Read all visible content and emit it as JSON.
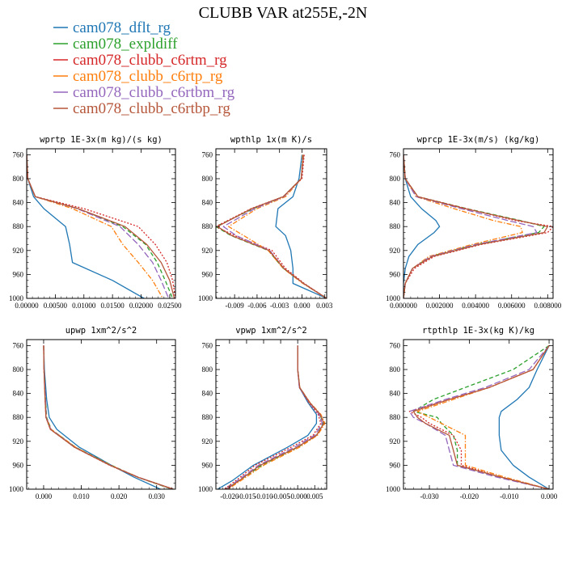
{
  "title": "CLUBB VAR at255E,-2N",
  "legend": [
    {
      "name": "cam078_dflt_rg",
      "color": "#1f77b4",
      "dash": "solid"
    },
    {
      "name": "cam078_expldiff",
      "color": "#2ca02c",
      "dash": "dashed"
    },
    {
      "name": "cam078_clubb_c6rtm_rg",
      "color": "#d62728",
      "dash": "dotted"
    },
    {
      "name": "cam078_clubb_c6rtp_rg",
      "color": "#ff7f0e",
      "dash": "dashdot"
    },
    {
      "name": "cam078_clubb_c6rtbm_rg",
      "color": "#9467bd",
      "dash": "longdash"
    },
    {
      "name": "cam078_clubb_c6rtbp_rg",
      "color": "#b5563a",
      "dash": "solid"
    }
  ],
  "chart_data": [
    {
      "type": "line",
      "title": "wprtp  1E-3x(m kg)/(s kg)",
      "ylim": [
        1000,
        750
      ],
      "y_ticks": [
        760,
        800,
        840,
        880,
        920,
        960,
        1000
      ],
      "xlim": [
        0,
        0.026
      ],
      "x_ticks": [
        0,
        0.005,
        0.01,
        0.015,
        0.02,
        0.025
      ],
      "x_tick_labels": [
        "0.00000",
        "0.00500",
        "0.01000",
        "0.01500",
        "0.02000",
        "0.02500"
      ],
      "y": [
        760,
        800,
        830,
        850,
        880,
        910,
        940,
        970,
        1000
      ],
      "series": [
        {
          "name": "cam078_dflt_rg",
          "values": [
            0.0,
            0.0002,
            0.0012,
            0.003,
            0.0068,
            0.0075,
            0.008,
            0.015,
            0.0205
          ]
        },
        {
          "name": "cam078_expldiff",
          "values": [
            0.0,
            0.0002,
            0.0015,
            0.009,
            0.0168,
            0.0208,
            0.0228,
            0.0242,
            0.0255
          ]
        },
        {
          "name": "cam078_clubb_c6rtm_rg",
          "values": [
            0.0,
            0.0002,
            0.0015,
            0.01,
            0.0195,
            0.0225,
            0.0245,
            0.0255,
            0.026
          ]
        },
        {
          "name": "cam078_clubb_c6rtp_rg",
          "values": [
            0.0,
            0.0002,
            0.0015,
            0.008,
            0.0148,
            0.0168,
            0.0195,
            0.022,
            0.0238
          ]
        },
        {
          "name": "cam078_clubb_c6rtbm_rg",
          "values": [
            0.0,
            0.0002,
            0.0015,
            0.0088,
            0.0163,
            0.0195,
            0.022,
            0.0235,
            0.0248
          ]
        },
        {
          "name": "cam078_clubb_c6rtbp_rg",
          "values": [
            0.0,
            0.0002,
            0.0015,
            0.009,
            0.0172,
            0.021,
            0.0235,
            0.025,
            0.0258
          ]
        }
      ]
    },
    {
      "type": "line",
      "title": "wpthlp  1x(m K)/s",
      "ylim": [
        1000,
        750
      ],
      "y_ticks": [
        760,
        800,
        840,
        880,
        920,
        960,
        1000
      ],
      "xlim": [
        -0.0115,
        0.0033
      ],
      "x_ticks": [
        -0.009,
        -0.006,
        -0.003,
        0.0,
        0.003
      ],
      "x_tick_labels": [
        "-0.009",
        "-0.006",
        "-0.003",
        "0.000",
        "0.003"
      ],
      "y": [
        760,
        800,
        830,
        850,
        880,
        895,
        920,
        950,
        975,
        1000
      ],
      "series": [
        {
          "name": "cam078_dflt_rg",
          "values": [
            0.0,
            -0.0004,
            -0.0012,
            -0.0032,
            -0.0035,
            -0.0022,
            -0.0015,
            -0.0012,
            -0.0012,
            0.0033
          ]
        },
        {
          "name": "cam078_expldiff",
          "values": [
            0.0002,
            -0.0001,
            -0.0025,
            -0.0065,
            -0.0115,
            -0.0095,
            -0.0045,
            -0.0025,
            0.0002,
            0.0033
          ]
        },
        {
          "name": "cam078_clubb_c6rtm_rg",
          "values": [
            0.0003,
            0.0,
            -0.0025,
            -0.0068,
            -0.0115,
            -0.009,
            -0.004,
            -0.0022,
            0.0003,
            0.0033
          ]
        },
        {
          "name": "cam078_clubb_c6rtp_rg",
          "values": [
            0.0001,
            -0.0001,
            -0.0022,
            -0.006,
            -0.0098,
            -0.0078,
            -0.0045,
            -0.0025,
            0.0001,
            0.0033
          ]
        },
        {
          "name": "cam078_clubb_c6rtbm_rg",
          "values": [
            0.0002,
            -0.0001,
            -0.0024,
            -0.0063,
            -0.0105,
            -0.0088,
            -0.0043,
            -0.0024,
            0.0002,
            0.0033
          ]
        },
        {
          "name": "cam078_clubb_c6rtbp_rg",
          "values": [
            0.0002,
            -0.0001,
            -0.0025,
            -0.0067,
            -0.0113,
            -0.0094,
            -0.0044,
            -0.0024,
            0.0002,
            0.0033
          ]
        }
      ]
    },
    {
      "type": "line",
      "title": "wprcp  1E-3x(m/s) (kg/kg)",
      "ylim": [
        1000,
        750
      ],
      "y_ticks": [
        760,
        800,
        840,
        880,
        920,
        960,
        1000
      ],
      "xlim": [
        0,
        0.0083
      ],
      "x_ticks": [
        0,
        0.002,
        0.004,
        0.006,
        0.008
      ],
      "x_tick_labels": [
        "0.000000",
        "0.002000",
        "0.004000",
        "0.006000",
        "0.008000"
      ],
      "y": [
        760,
        800,
        830,
        850,
        870,
        880,
        890,
        910,
        930,
        950,
        975,
        1000
      ],
      "series": [
        {
          "name": "cam078_dflt_rg",
          "values": [
            0.0,
            0.0001,
            0.0004,
            0.001,
            0.0018,
            0.002,
            0.0017,
            0.0008,
            0.0003,
            0.0001,
            0.0,
            0.0
          ]
        },
        {
          "name": "cam078_expldiff",
          "values": [
            0.0,
            0.0001,
            0.0008,
            0.0035,
            0.0065,
            0.0078,
            0.0075,
            0.004,
            0.0015,
            0.0005,
            0.0001,
            0.0
          ]
        },
        {
          "name": "cam078_clubb_c6rtm_rg",
          "values": [
            0.0,
            0.0001,
            0.0008,
            0.0035,
            0.0062,
            0.0083,
            0.008,
            0.0043,
            0.0017,
            0.0006,
            0.0001,
            0.0
          ]
        },
        {
          "name": "cam078_clubb_c6rtp_rg",
          "values": [
            0.0,
            0.0001,
            0.0007,
            0.0028,
            0.005,
            0.0065,
            0.0066,
            0.0038,
            0.0014,
            0.0005,
            0.0001,
            0.0
          ]
        },
        {
          "name": "cam078_clubb_c6rtbm_rg",
          "values": [
            0.0,
            0.0001,
            0.0007,
            0.0032,
            0.0058,
            0.0072,
            0.0074,
            0.004,
            0.0015,
            0.0005,
            0.0001,
            0.0
          ]
        },
        {
          "name": "cam078_clubb_c6rtbp_rg",
          "values": [
            0.0,
            0.0001,
            0.0008,
            0.0034,
            0.0064,
            0.008,
            0.0078,
            0.0042,
            0.0016,
            0.0005,
            0.0001,
            0.0
          ]
        }
      ]
    },
    {
      "type": "line",
      "title": "upwp  1xm^2/s^2",
      "ylim": [
        1000,
        750
      ],
      "y_ticks": [
        760,
        800,
        840,
        880,
        920,
        960,
        1000
      ],
      "xlim": [
        -0.0045,
        0.035
      ],
      "x_ticks": [
        0.0,
        0.01,
        0.02,
        0.03
      ],
      "x_tick_labels": [
        "0.000",
        "0.010",
        "0.020",
        "0.030"
      ],
      "y": [
        760,
        800,
        850,
        880,
        900,
        930,
        960,
        980,
        1000
      ],
      "series": [
        {
          "name": "cam078_dflt_rg",
          "values": [
            0.0,
            0.0002,
            0.0008,
            0.0015,
            0.0035,
            0.0095,
            0.018,
            0.024,
            0.031
          ]
        },
        {
          "name": "cam078_expldiff",
          "values": [
            0.0,
            0.0001,
            0.0005,
            0.0008,
            0.002,
            0.0085,
            0.018,
            0.025,
            0.034
          ]
        },
        {
          "name": "cam078_clubb_c6rtm_rg",
          "values": [
            0.0,
            0.0001,
            0.0004,
            0.0006,
            0.0018,
            0.0082,
            0.0175,
            0.025,
            0.0345
          ]
        },
        {
          "name": "cam078_clubb_c6rtp_rg",
          "values": [
            0.0,
            0.0001,
            0.0004,
            0.0007,
            0.002,
            0.0085,
            0.0178,
            0.0252,
            0.0342
          ]
        },
        {
          "name": "cam078_clubb_c6rtbm_rg",
          "values": [
            0.0,
            0.0001,
            0.0005,
            0.0007,
            0.0019,
            0.0083,
            0.0177,
            0.0251,
            0.0343
          ]
        },
        {
          "name": "cam078_clubb_c6rtbp_rg",
          "values": [
            0.0,
            0.0001,
            0.0004,
            0.0006,
            0.0018,
            0.0082,
            0.0176,
            0.025,
            0.0345
          ]
        }
      ]
    },
    {
      "type": "line",
      "title": "vpwp  1xm^2/s^2",
      "ylim": [
        1000,
        750
      ],
      "y_ticks": [
        760,
        800,
        840,
        880,
        920,
        960,
        1000
      ],
      "xlim": [
        -0.024,
        0.0085
      ],
      "x_ticks": [
        -0.02,
        -0.015,
        -0.01,
        -0.005,
        0.0,
        0.005
      ],
      "x_tick_labels": [
        "-0.020",
        "-0.015",
        "-0.010",
        "-0.005",
        "-0.000",
        "0.005"
      ],
      "y": [
        760,
        800,
        830,
        855,
        875,
        890,
        910,
        930,
        960,
        985,
        1000
      ],
      "series": [
        {
          "name": "cam078_dflt_rg",
          "values": [
            0.0,
            0.0,
            0.0005,
            0.003,
            0.0055,
            0.0055,
            0.003,
            -0.003,
            -0.013,
            -0.019,
            -0.0235
          ]
        },
        {
          "name": "cam078_expldiff",
          "values": [
            0.0,
            0.0,
            0.0006,
            0.0035,
            0.0065,
            0.0075,
            0.0055,
            0.0,
            -0.0105,
            -0.017,
            -0.021
          ]
        },
        {
          "name": "cam078_clubb_c6rtm_rg",
          "values": [
            0.0,
            0.0,
            0.0005,
            0.0032,
            0.006,
            0.0068,
            0.0045,
            -0.002,
            -0.0125,
            -0.018,
            -0.0215
          ]
        },
        {
          "name": "cam078_clubb_c6rtp_rg",
          "values": [
            0.0,
            0.0,
            0.0006,
            0.0036,
            0.0068,
            0.008,
            0.0058,
            0.0005,
            -0.01,
            -0.0165,
            -0.0205
          ]
        },
        {
          "name": "cam078_clubb_c6rtbm_rg",
          "values": [
            0.0,
            0.0,
            0.0005,
            0.0034,
            0.0063,
            0.0072,
            0.005,
            -0.001,
            -0.0115,
            -0.0175,
            -0.021
          ]
        },
        {
          "name": "cam078_clubb_c6rtbp_rg",
          "values": [
            0.0,
            0.0,
            0.0006,
            0.0035,
            0.0066,
            0.0077,
            0.0055,
            -0.0002,
            -0.011,
            -0.017,
            -0.0208
          ]
        }
      ]
    },
    {
      "type": "line",
      "title": "rtpthlp  1E-3x(kg K)/kg",
      "ylim": [
        1000,
        750
      ],
      "y_ticks": [
        760,
        800,
        840,
        880,
        920,
        960,
        1000
      ],
      "xlim": [
        -0.0365,
        0.001
      ],
      "x_ticks": [
        -0.03,
        -0.02,
        -0.01,
        0.0
      ],
      "x_tick_labels": [
        "-0.030",
        "-0.020",
        "-0.010",
        "0.000"
      ],
      "y": [
        760,
        800,
        830,
        850,
        870,
        880,
        890,
        910,
        935,
        960,
        980,
        1000
      ],
      "series": [
        {
          "name": "cam078_dflt_rg",
          "values": [
            0.0,
            -0.003,
            -0.005,
            -0.008,
            -0.012,
            -0.0125,
            -0.0125,
            -0.0125,
            -0.012,
            -0.009,
            -0.005,
            0.0
          ]
        },
        {
          "name": "cam078_expldiff",
          "values": [
            0.0,
            -0.009,
            -0.021,
            -0.029,
            -0.034,
            -0.028,
            -0.027,
            -0.024,
            -0.023,
            -0.023,
            -0.012,
            0.0
          ]
        },
        {
          "name": "cam078_clubb_c6rtm_rg",
          "values": [
            0.0,
            -0.004,
            -0.015,
            -0.025,
            -0.035,
            -0.032,
            -0.03,
            -0.024,
            -0.022,
            -0.022,
            -0.012,
            0.0
          ]
        },
        {
          "name": "cam078_clubb_c6rtp_rg",
          "values": [
            0.0,
            -0.004,
            -0.015,
            -0.024,
            -0.033,
            -0.03,
            -0.027,
            -0.021,
            -0.021,
            -0.021,
            -0.011,
            0.0
          ]
        },
        {
          "name": "cam078_clubb_c6rtbm_rg",
          "values": [
            0.0,
            -0.005,
            -0.016,
            -0.026,
            -0.035,
            -0.034,
            -0.031,
            -0.026,
            -0.025,
            -0.024,
            -0.013,
            0.0
          ]
        },
        {
          "name": "cam078_clubb_c6rtbp_rg",
          "values": [
            0.0,
            -0.004,
            -0.015,
            -0.025,
            -0.034,
            -0.033,
            -0.031,
            -0.025,
            -0.024,
            -0.023,
            -0.012,
            0.0
          ]
        }
      ]
    }
  ]
}
